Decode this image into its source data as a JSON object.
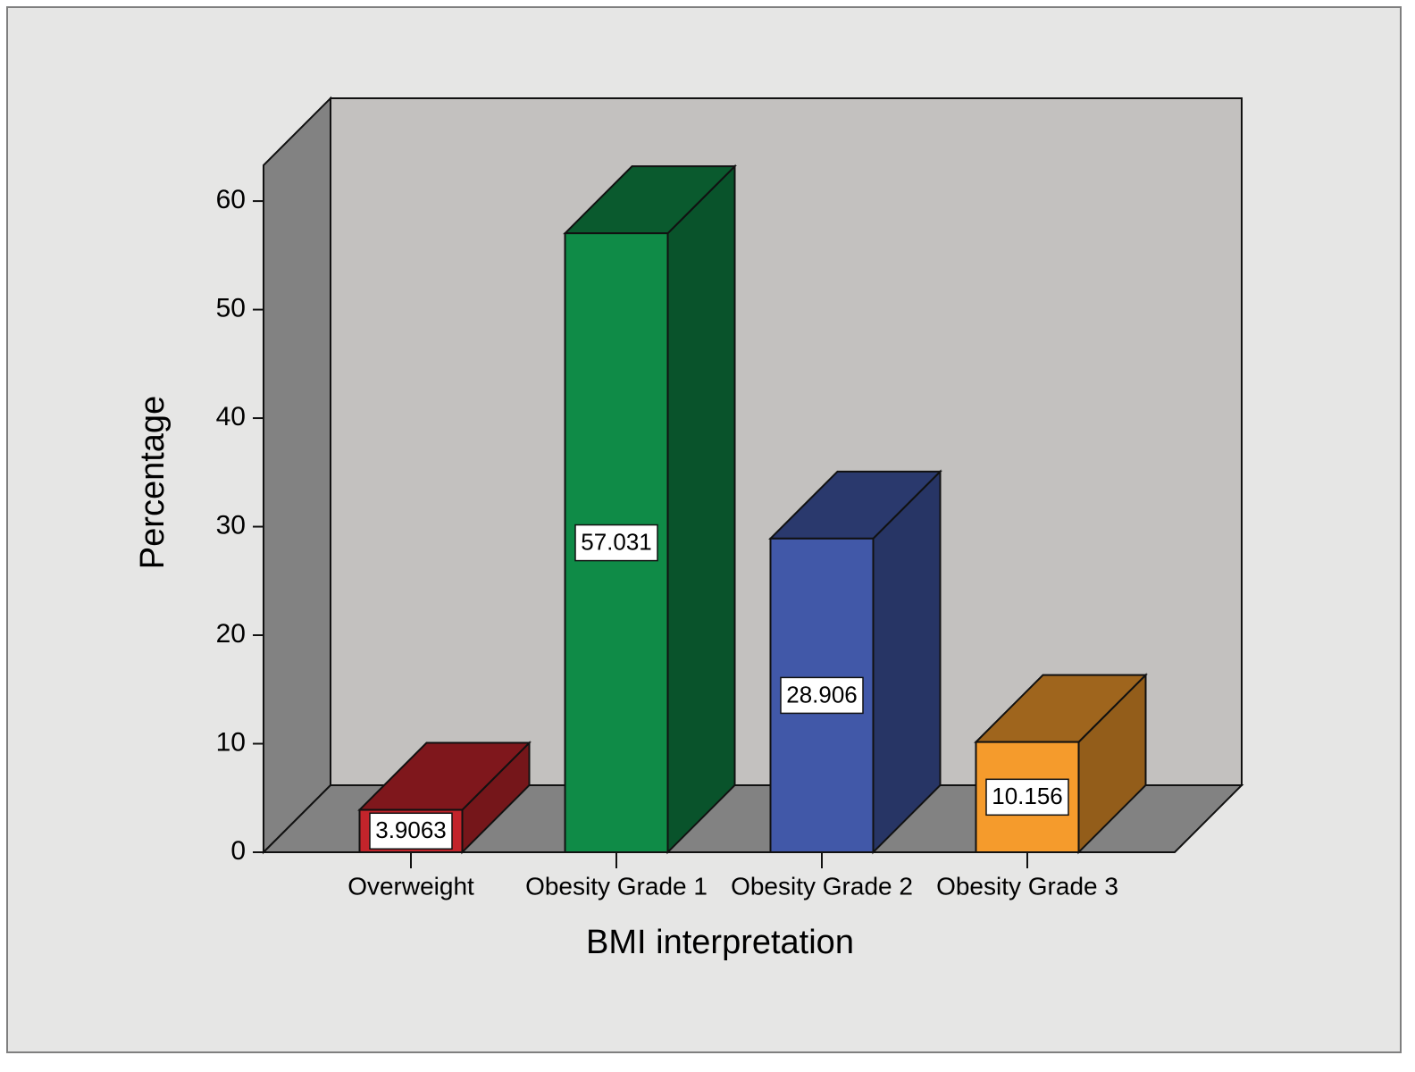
{
  "chart_data": {
    "type": "bar3d",
    "x_label": "BMI interpretation",
    "y_label": "Percentage",
    "categories": [
      "Overweight",
      "Obesity Grade 1",
      "Obesity Grade 2",
      "Obesity Grade 3"
    ],
    "values": [
      3.9063,
      57.031,
      28.906,
      10.156
    ],
    "colors": [
      "#c3242b",
      "#0f8b47",
      "#4158a8",
      "#f59b2c"
    ],
    "ylim": [
      0,
      63.3
    ],
    "yticks": [
      0,
      10,
      20,
      30,
      40,
      50,
      60
    ]
  }
}
